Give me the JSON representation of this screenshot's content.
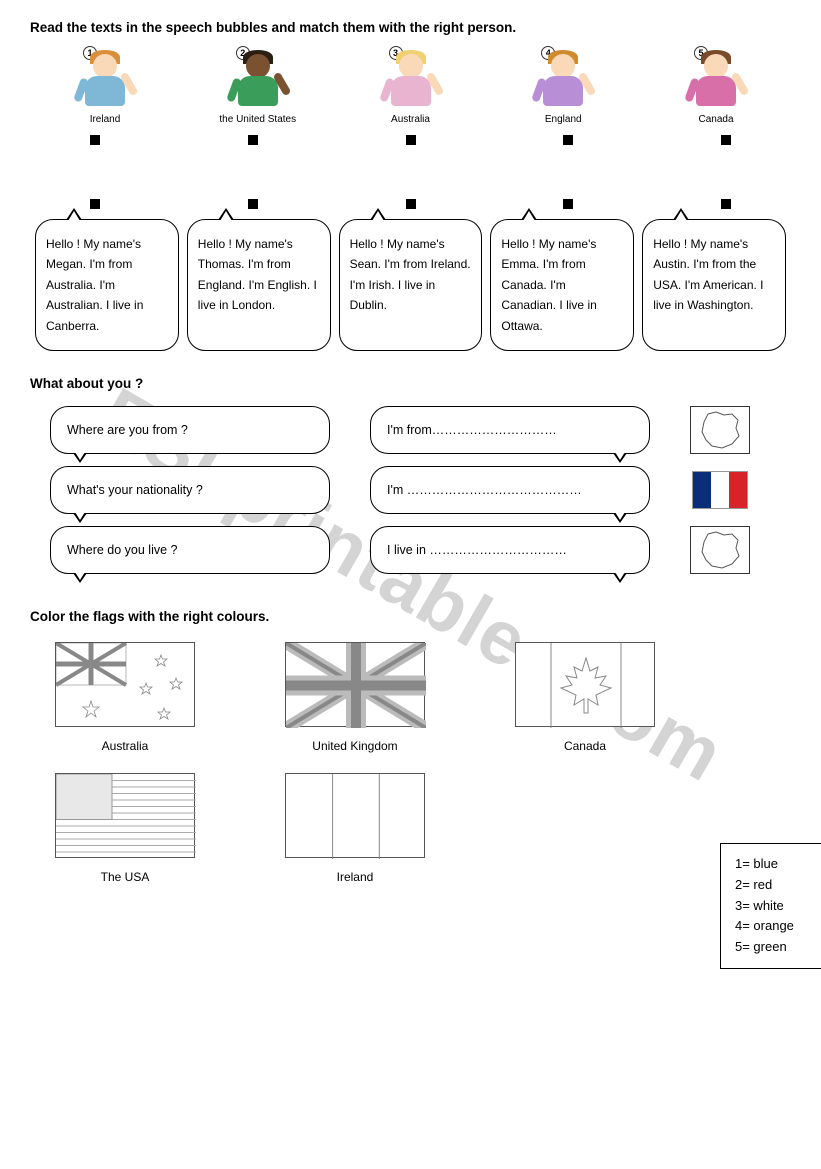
{
  "watermark": "ESLprintables.com",
  "instruction1": "Read the texts in the speech bubbles and match them with the right person.",
  "people": [
    {
      "num": "1",
      "country": "Ireland",
      "skin": "#f9d9b8",
      "hair": "#d98e3a",
      "shirt": "#7fb7d6"
    },
    {
      "num": "2",
      "country": "the United States",
      "skin": "#7a5232",
      "hair": "#2b1e12",
      "shirt": "#3a9d5a"
    },
    {
      "num": "3",
      "country": "Australia",
      "skin": "#f9d9b8",
      "hair": "#f0d070",
      "shirt": "#e9b4cf"
    },
    {
      "num": "4",
      "country": "England",
      "skin": "#f9d9b8",
      "hair": "#d08a30",
      "shirt": "#b88ed6"
    },
    {
      "num": "5",
      "country": "Canada",
      "skin": "#f9d9b8",
      "hair": "#7a4b2a",
      "shirt": "#d96fa8"
    }
  ],
  "bubbles": [
    "Hello ! My name's Megan. I'm from Australia. I'm Australian. I live in Canberra.",
    "Hello ! My name's Thomas. I'm from England. I'm English. I live in London.",
    "Hello ! My name's Sean. I'm from Ireland. I'm Irish. I live in Dublin.",
    "Hello ! My name's Emma. I'm from Canada. I'm Canadian. I live in Ottawa.",
    "Hello ! My name's Austin. I'm from the USA. I'm American. I live in Washington."
  ],
  "section2_title": "What about you ?",
  "qa": [
    {
      "q": "Where are you from ?",
      "a": "I'm from…………………………"
    },
    {
      "q": "What's your nationality ?",
      "a": "I'm ……………………………………"
    },
    {
      "q": "Where do you live ?",
      "a": "I live in ……………………………"
    }
  ],
  "france_flag_colors": [
    "#0b2e7a",
    "#ffffff",
    "#d8232a"
  ],
  "section3_title": "Color the flags with the right colours.",
  "flags_row1": [
    "Australia",
    "United Kingdom",
    "Canada"
  ],
  "flags_row2": [
    "The USA",
    "Ireland"
  ],
  "legend": [
    "1= blue",
    "2= red",
    "3= white",
    "4= orange",
    "5= green"
  ]
}
